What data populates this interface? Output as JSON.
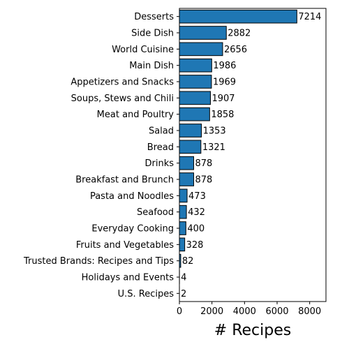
{
  "chart_data": {
    "type": "bar",
    "orientation": "horizontal",
    "categories": [
      "Desserts",
      "Side Dish",
      "World Cuisine",
      "Main Dish",
      "Appetizers and Snacks",
      "Soups, Stews and Chili",
      "Meat and Poultry",
      "Salad",
      "Bread",
      "Drinks",
      "Breakfast and Brunch",
      "Pasta and Noodles",
      "Seafood",
      "Everyday Cooking",
      "Fruits and Vegetables",
      "Trusted Brands: Recipes and Tips",
      "Holidays and Events",
      "U.S. Recipes"
    ],
    "values": [
      7214,
      2882,
      2656,
      1986,
      1969,
      1907,
      1858,
      1353,
      1321,
      878,
      878,
      473,
      432,
      400,
      328,
      82,
      4,
      2
    ],
    "value_labels": [
      "7214",
      "2882",
      "2656",
      "1986",
      "1969",
      "1907",
      "1858",
      "1353",
      "1321",
      "878",
      "878",
      "473",
      "432",
      "400",
      "328",
      "82",
      "4",
      "2"
    ],
    "xlabel": "# Recipes",
    "ylabel": "",
    "xlim": [
      0,
      9000
    ],
    "xticks": [
      0,
      2000,
      4000,
      6000,
      8000
    ],
    "xtick_labels": [
      "0",
      "2000",
      "4000",
      "6000",
      "8000"
    ],
    "grid": false,
    "legend": "none",
    "bar_color": "#1f77b4",
    "edge_color": "#000000"
  }
}
